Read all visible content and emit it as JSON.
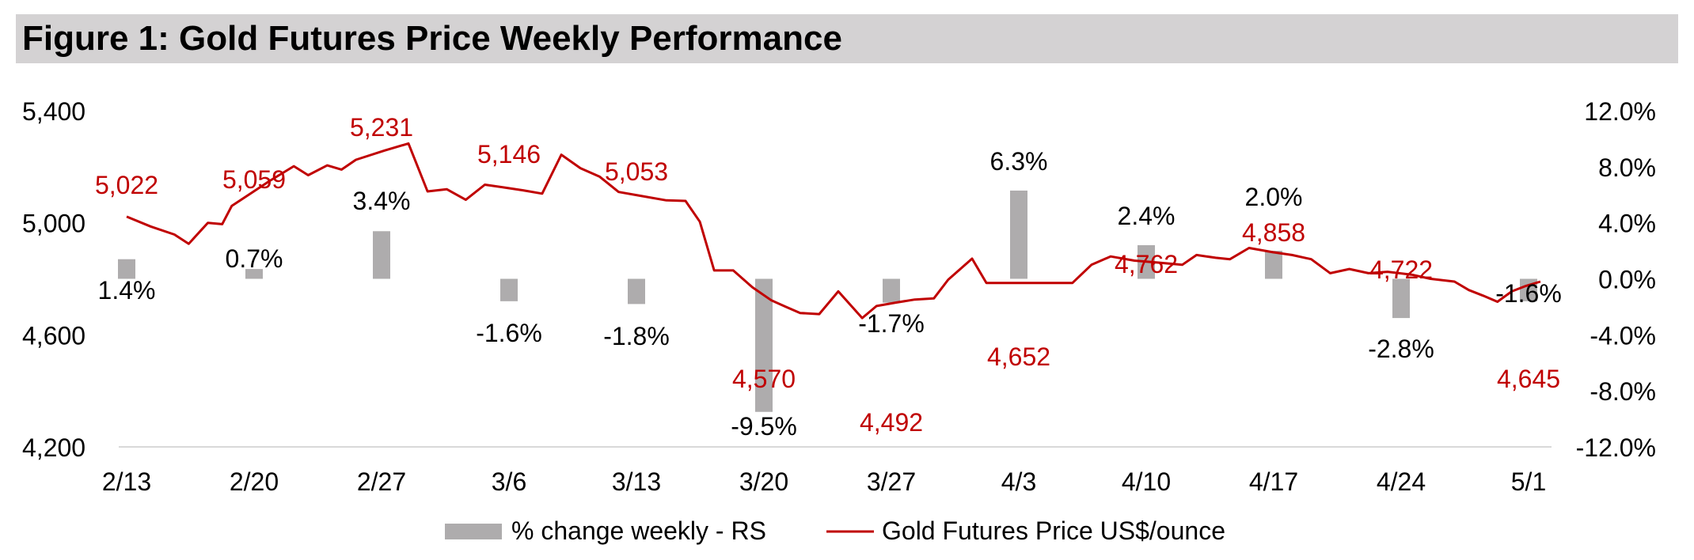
{
  "title": "Figure 1: Gold Futures Price Weekly Performance",
  "chart_data": {
    "type": "bar+line",
    "categories": [
      "2/13",
      "2/20",
      "2/27",
      "3/6",
      "3/13",
      "3/20",
      "3/27",
      "4/3",
      "4/10",
      "4/17",
      "4/24",
      "5/1"
    ],
    "left_axis": {
      "min": 4200,
      "max": 5400,
      "ticks": [
        "5,400",
        "5,000",
        "4,600",
        "4,200"
      ],
      "tick_values": [
        5400,
        5000,
        4600,
        4200
      ]
    },
    "right_axis": {
      "min": -12,
      "max": 12,
      "ticks": [
        "12.0%",
        "8.0%",
        "4.0%",
        "0.0%",
        "-4.0%",
        "-8.0%",
        "-12.0%"
      ],
      "tick_values": [
        12,
        8,
        4,
        0,
        -4,
        -8,
        -12
      ]
    },
    "bar_series": {
      "name": "% change weekly - RS",
      "color": "#aeacad",
      "values": [
        1.4,
        0.7,
        3.4,
        -1.6,
        -1.8,
        -9.5,
        -1.7,
        6.3,
        2.4,
        2.0,
        -2.8,
        -1.6
      ],
      "labels": [
        "1.4%",
        "0.7%",
        "3.4%",
        "-1.6%",
        "-1.8%",
        "-9.5%",
        "-1.7%",
        "6.3%",
        "2.4%",
        "2.0%",
        "-2.8%",
        "-1.6%"
      ]
    },
    "line_series": {
      "name": "Gold Futures Price US$/ounce",
      "color": "#c00000",
      "points": [
        [
          0,
          5022
        ],
        [
          0.25,
          4987
        ],
        [
          0.5,
          4958
        ],
        [
          0.65,
          4925
        ],
        [
          0.85,
          5000
        ],
        [
          1.0,
          4995
        ],
        [
          1.1,
          5060
        ],
        [
          1.5,
          5150
        ],
        [
          1.75,
          5202
        ],
        [
          1.9,
          5170
        ],
        [
          2.1,
          5205
        ],
        [
          2.25,
          5190
        ],
        [
          2.4,
          5225
        ],
        [
          2.7,
          5258
        ],
        [
          2.95,
          5283
        ],
        [
          3.15,
          5112
        ],
        [
          3.35,
          5120
        ],
        [
          3.55,
          5082
        ],
        [
          3.75,
          5136
        ],
        [
          3.95,
          5126
        ],
        [
          4.15,
          5116
        ],
        [
          4.35,
          5104
        ],
        [
          4.55,
          5243
        ],
        [
          4.75,
          5195
        ],
        [
          4.95,
          5165
        ],
        [
          5.15,
          5110
        ],
        [
          5.4,
          5095
        ],
        [
          5.65,
          5080
        ],
        [
          5.85,
          5078
        ],
        [
          6.0,
          5004
        ],
        [
          6.15,
          4830
        ],
        [
          6.35,
          4830
        ],
        [
          6.55,
          4770
        ],
        [
          6.75,
          4723
        ],
        [
          6.9,
          4700
        ],
        [
          7.05,
          4678
        ],
        [
          7.25,
          4674
        ],
        [
          7.45,
          4755
        ],
        [
          7.7,
          4660
        ],
        [
          7.85,
          4703
        ],
        [
          8.05,
          4715
        ],
        [
          8.25,
          4726
        ],
        [
          8.45,
          4730
        ],
        [
          8.6,
          4797
        ],
        [
          8.85,
          4872
        ],
        [
          9.0,
          4785
        ],
        [
          9.2,
          4785
        ],
        [
          9.45,
          4785
        ],
        [
          9.65,
          4785
        ],
        [
          9.9,
          4785
        ],
        [
          10.1,
          4850
        ],
        [
          10.3,
          4880
        ],
        [
          10.55,
          4865
        ],
        [
          10.8,
          4858
        ],
        [
          11.05,
          4850
        ],
        [
          11.2,
          4885
        ],
        [
          11.4,
          4875
        ],
        [
          11.55,
          4870
        ],
        [
          11.75,
          4910
        ],
        [
          12.0,
          4895
        ],
        [
          12.2,
          4885
        ],
        [
          12.4,
          4870
        ],
        [
          12.6,
          4820
        ],
        [
          12.8,
          4835
        ],
        [
          13.0,
          4820
        ],
        [
          13.2,
          4825
        ],
        [
          13.45,
          4815
        ],
        [
          13.65,
          4800
        ],
        [
          13.9,
          4790
        ],
        [
          14.05,
          4760
        ],
        [
          14.2,
          4740
        ],
        [
          14.35,
          4718
        ],
        [
          14.5,
          4755
        ],
        [
          14.65,
          4775
        ],
        [
          14.8,
          4790
        ]
      ],
      "labels": [
        {
          "text": "5,022",
          "x": 0,
          "y": 5022
        },
        {
          "text": "5,059",
          "x": 1,
          "y": 5059
        },
        {
          "text": "5,231",
          "x": 2,
          "y": 5231
        },
        {
          "text": "5,146",
          "x": 3,
          "y": 5146
        },
        {
          "text": "5,053",
          "x": 4,
          "y": 5053
        },
        {
          "text": "4,570",
          "x": 5,
          "y": 4570
        },
        {
          "text": "4,492",
          "x": 6,
          "y": 4492
        },
        {
          "text": "4,652",
          "x": 7,
          "y": 4652
        },
        {
          "text": "4,762",
          "x": 8,
          "y": 4762
        },
        {
          "text": "4,858",
          "x": 9,
          "y": 4858
        },
        {
          "text": "4,722",
          "x": 10,
          "y": 4722
        },
        {
          "text": "4,645",
          "x": 11,
          "y": 4645
        }
      ]
    },
    "legend_position": "bottom-center",
    "grid": false
  }
}
